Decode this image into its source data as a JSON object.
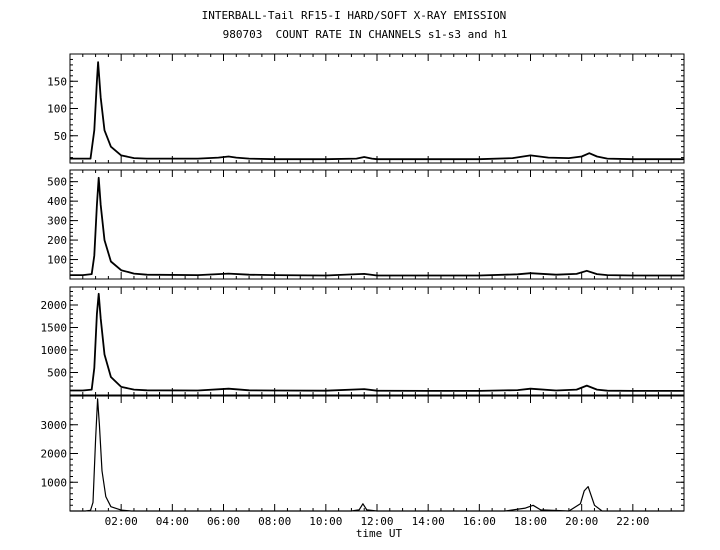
{
  "title": "INTERBALL-Tail RF15-I HARD/SOFT X-RAY EMISSION",
  "subtitle": "980703  COUNT RATE IN CHANNELS s1-s3 and h1",
  "chart_data": [
    {
      "type": "line",
      "panel": 1,
      "title": "",
      "xlabel": "",
      "ylabel": "",
      "xlim": [
        0,
        24
      ],
      "ylim": [
        0,
        200
      ],
      "yticks": [
        50,
        100,
        150
      ],
      "yticklabels": [
        "50",
        "100",
        "150"
      ],
      "grid": false,
      "series": [
        {
          "x": [
            0,
            0.5,
            0.8,
            0.95,
            1.05,
            1.1,
            1.2,
            1.35,
            1.6,
            2.0,
            2.5,
            3.0,
            5.0,
            5.8,
            6.2,
            6.5,
            7.0,
            8.0,
            10.0,
            11.2,
            11.5,
            11.8,
            12.0,
            14.0,
            16.0,
            17.3,
            18.0,
            18.7,
            19.5,
            20.0,
            20.3,
            20.6,
            21.0,
            22.0,
            24.0
          ],
          "values": [
            8,
            8,
            8,
            60,
            150,
            185,
            120,
            60,
            30,
            14,
            9,
            8,
            8,
            10,
            12,
            10,
            8,
            7,
            7,
            8,
            11,
            8,
            7,
            7,
            7,
            9,
            14,
            10,
            9,
            12,
            18,
            12,
            8,
            7,
            7
          ]
        }
      ]
    },
    {
      "type": "line",
      "panel": 2,
      "title": "",
      "xlabel": "",
      "ylabel": "",
      "xlim": [
        0,
        24
      ],
      "ylim": [
        0,
        560
      ],
      "yticks": [
        100,
        200,
        300,
        400,
        500
      ],
      "yticklabels": [
        "100",
        "200",
        "300",
        "400",
        "500"
      ],
      "grid": false,
      "series": [
        {
          "x": [
            0,
            0.5,
            0.85,
            0.95,
            1.05,
            1.12,
            1.2,
            1.35,
            1.6,
            2.0,
            2.5,
            3.0,
            5.0,
            6.2,
            7.0,
            8.0,
            10.0,
            11.5,
            12.0,
            14.0,
            16.0,
            17.5,
            18.0,
            19.0,
            19.8,
            20.2,
            20.6,
            21.0,
            22.0,
            24.0
          ],
          "values": [
            20,
            20,
            25,
            120,
            380,
            520,
            380,
            200,
            90,
            45,
            28,
            22,
            20,
            28,
            22,
            20,
            18,
            26,
            18,
            18,
            18,
            24,
            30,
            22,
            26,
            42,
            25,
            20,
            18,
            18
          ]
        }
      ]
    },
    {
      "type": "line",
      "panel": 3,
      "title": "",
      "xlabel": "",
      "ylabel": "",
      "xlim": [
        0,
        24
      ],
      "ylim": [
        0,
        2400
      ],
      "yticks": [
        500,
        1000,
        1500,
        2000
      ],
      "yticklabels": [
        "500",
        "1000",
        "1500",
        "2000"
      ],
      "grid": false,
      "series": [
        {
          "x": [
            0,
            0.5,
            0.85,
            0.95,
            1.05,
            1.12,
            1.2,
            1.35,
            1.6,
            2.0,
            2.5,
            3.0,
            5.0,
            6.2,
            7.0,
            8.0,
            10.0,
            11.5,
            12.0,
            14.0,
            16.0,
            17.5,
            18.0,
            19.0,
            19.8,
            20.2,
            20.6,
            21.0,
            22.0,
            24.0
          ],
          "values": [
            100,
            100,
            120,
            600,
            1800,
            2250,
            1700,
            900,
            400,
            180,
            120,
            105,
            100,
            140,
            105,
            100,
            95,
            130,
            95,
            90,
            90,
            110,
            140,
            100,
            120,
            210,
            120,
            95,
            90,
            90
          ]
        }
      ]
    },
    {
      "type": "line",
      "panel": 4,
      "title": "",
      "xlabel": "time UT",
      "ylabel": "",
      "xlim": [
        0,
        24
      ],
      "ylim": [
        0,
        4000
      ],
      "yticks": [
        1000,
        2000,
        3000
      ],
      "yticklabels": [
        "1000",
        "2000",
        "3000"
      ],
      "xticks": [
        2,
        4,
        6,
        8,
        10,
        12,
        14,
        16,
        18,
        20,
        22
      ],
      "xticklabels": [
        "02:00",
        "04:00",
        "06:00",
        "08:00",
        "10:00",
        "12:00",
        "14:00",
        "16:00",
        "18:00",
        "20:00",
        "22:00"
      ],
      "grid": false,
      "series": [
        {
          "x": [
            0,
            0.6,
            0.8,
            0.9,
            1.0,
            1.08,
            1.15,
            1.25,
            1.4,
            1.6,
            2.0,
            2.4,
            11.0,
            11.3,
            11.45,
            11.6,
            12.0,
            17.0,
            17.8,
            18.1,
            18.4,
            19.5,
            19.95,
            20.1,
            20.25,
            20.5,
            20.8,
            24.0
          ],
          "values": [
            0,
            0,
            20,
            300,
            2500,
            3900,
            3000,
            1400,
            500,
            150,
            30,
            0,
            0,
            40,
            250,
            40,
            0,
            0,
            100,
            200,
            40,
            0,
            250,
            700,
            850,
            200,
            0,
            0
          ]
        }
      ]
    }
  ]
}
